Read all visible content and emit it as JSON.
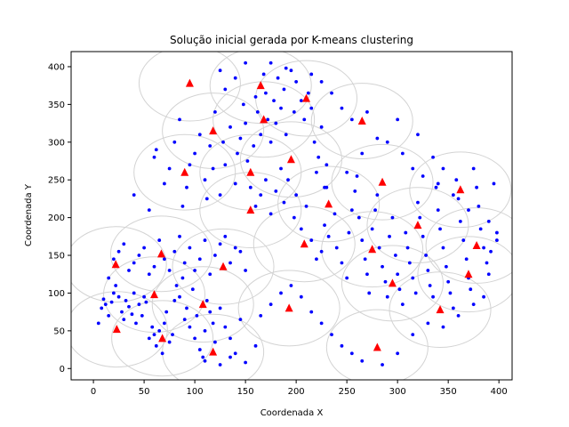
{
  "chart_data": {
    "type": "scatter",
    "title": "Solução inicial gerada por K-means clustering",
    "xlabel": "Coordenada X",
    "ylabel": "Coordenada Y",
    "xlim": [
      -22,
      413
    ],
    "ylim": [
      -15,
      420
    ],
    "xticks": [
      0,
      50,
      100,
      150,
      200,
      250,
      300,
      350,
      400
    ],
    "yticks": [
      0,
      50,
      100,
      150,
      200,
      250,
      300,
      350,
      400
    ],
    "grid": false,
    "legend": "none",
    "colors": {
      "points": "#0000ff",
      "centers": "#ff0000",
      "circles": "#d3d3d3"
    },
    "circle_radius": 50,
    "centers": [
      [
        95,
        378
      ],
      [
        165,
        375
      ],
      [
        210,
        358
      ],
      [
        265,
        328
      ],
      [
        168,
        330
      ],
      [
        118,
        315
      ],
      [
        90,
        260
      ],
      [
        155,
        260
      ],
      [
        195,
        277
      ],
      [
        285,
        247
      ],
      [
        362,
        237
      ],
      [
        155,
        210
      ],
      [
        232,
        218
      ],
      [
        320,
        190
      ],
      [
        208,
        165
      ],
      [
        275,
        158
      ],
      [
        378,
        163
      ],
      [
        67,
        152
      ],
      [
        22,
        138
      ],
      [
        128,
        135
      ],
      [
        370,
        125
      ],
      [
        295,
        113
      ],
      [
        60,
        98
      ],
      [
        108,
        85
      ],
      [
        193,
        80
      ],
      [
        342,
        78
      ],
      [
        23,
        52
      ],
      [
        68,
        40
      ],
      [
        118,
        22
      ],
      [
        280,
        28
      ]
    ],
    "points": [
      [
        5,
        60
      ],
      [
        8,
        80
      ],
      [
        10,
        92
      ],
      [
        12,
        85
      ],
      [
        15,
        70
      ],
      [
        18,
        88
      ],
      [
        20,
        100
      ],
      [
        22,
        110
      ],
      [
        25,
        95
      ],
      [
        28,
        75
      ],
      [
        30,
        65
      ],
      [
        32,
        90
      ],
      [
        35,
        82
      ],
      [
        38,
        72
      ],
      [
        40,
        100
      ],
      [
        42,
        60
      ],
      [
        45,
        85
      ],
      [
        48,
        70
      ],
      [
        50,
        95
      ],
      [
        52,
        88
      ],
      [
        55,
        40
      ],
      [
        58,
        55
      ],
      [
        60,
        45
      ],
      [
        62,
        30
      ],
      [
        65,
        50
      ],
      [
        68,
        20
      ],
      [
        70,
        60
      ],
      [
        72,
        75
      ],
      [
        75,
        35
      ],
      [
        78,
        45
      ],
      [
        80,
        90
      ],
      [
        82,
        110
      ],
      [
        85,
        95
      ],
      [
        88,
        120
      ],
      [
        90,
        65
      ],
      [
        92,
        80
      ],
      [
        95,
        55
      ],
      [
        98,
        105
      ],
      [
        100,
        40
      ],
      [
        102,
        70
      ],
      [
        105,
        25
      ],
      [
        108,
        15
      ],
      [
        110,
        50
      ],
      [
        112,
        90
      ],
      [
        115,
        75
      ],
      [
        118,
        60
      ],
      [
        120,
        35
      ],
      [
        125,
        80
      ],
      [
        130,
        55
      ],
      [
        135,
        40
      ],
      [
        140,
        20
      ],
      [
        145,
        65
      ],
      [
        15,
        120
      ],
      [
        20,
        145
      ],
      [
        25,
        155
      ],
      [
        30,
        165
      ],
      [
        35,
        130
      ],
      [
        40,
        140
      ],
      [
        45,
        150
      ],
      [
        50,
        160
      ],
      [
        55,
        125
      ],
      [
        60,
        135
      ],
      [
        65,
        170
      ],
      [
        70,
        145
      ],
      [
        75,
        130
      ],
      [
        80,
        155
      ],
      [
        85,
        175
      ],
      [
        90,
        140
      ],
      [
        95,
        160
      ],
      [
        100,
        130
      ],
      [
        105,
        145
      ],
      [
        110,
        170
      ],
      [
        115,
        125
      ],
      [
        120,
        150
      ],
      [
        125,
        165
      ],
      [
        130,
        175
      ],
      [
        135,
        140
      ],
      [
        140,
        160
      ],
      [
        145,
        155
      ],
      [
        150,
        130
      ],
      [
        40,
        230
      ],
      [
        55,
        210
      ],
      [
        60,
        280
      ],
      [
        62,
        290
      ],
      [
        70,
        245
      ],
      [
        75,
        265
      ],
      [
        80,
        300
      ],
      [
        85,
        330
      ],
      [
        88,
        215
      ],
      [
        92,
        240
      ],
      [
        95,
        270
      ],
      [
        100,
        285
      ],
      [
        105,
        310
      ],
      [
        110,
        250
      ],
      [
        112,
        225
      ],
      [
        115,
        295
      ],
      [
        118,
        265
      ],
      [
        120,
        340
      ],
      [
        125,
        230
      ],
      [
        128,
        300
      ],
      [
        130,
        270
      ],
      [
        135,
        320
      ],
      [
        140,
        245
      ],
      [
        142,
        285
      ],
      [
        145,
        305
      ],
      [
        148,
        350
      ],
      [
        150,
        325
      ],
      [
        152,
        275
      ],
      [
        155,
        240
      ],
      [
        158,
        295
      ],
      [
        160,
        360
      ],
      [
        162,
        340
      ],
      [
        165,
        310
      ],
      [
        168,
        390
      ],
      [
        170,
        365
      ],
      [
        172,
        330
      ],
      [
        175,
        300
      ],
      [
        178,
        355
      ],
      [
        180,
        325
      ],
      [
        182,
        385
      ],
      [
        185,
        345
      ],
      [
        188,
        370
      ],
      [
        190,
        310
      ],
      [
        195,
        395
      ],
      [
        198,
        340
      ],
      [
        200,
        380
      ],
      [
        205,
        355
      ],
      [
        208,
        330
      ],
      [
        212,
        365
      ],
      [
        215,
        345
      ],
      [
        218,
        300
      ],
      [
        220,
        260
      ],
      [
        222,
        280
      ],
      [
        225,
        320
      ],
      [
        228,
        240
      ],
      [
        230,
        270
      ],
      [
        160,
        215
      ],
      [
        165,
        230
      ],
      [
        170,
        250
      ],
      [
        175,
        205
      ],
      [
        180,
        235
      ],
      [
        185,
        265
      ],
      [
        188,
        220
      ],
      [
        192,
        250
      ],
      [
        198,
        200
      ],
      [
        200,
        230
      ],
      [
        205,
        185
      ],
      [
        210,
        215
      ],
      [
        215,
        170
      ],
      [
        220,
        145
      ],
      [
        225,
        155
      ],
      [
        228,
        190
      ],
      [
        232,
        175
      ],
      [
        238,
        205
      ],
      [
        240,
        160
      ],
      [
        245,
        140
      ],
      [
        250,
        120
      ],
      [
        252,
        180
      ],
      [
        255,
        210
      ],
      [
        258,
        235
      ],
      [
        260,
        255
      ],
      [
        262,
        200
      ],
      [
        265,
        170
      ],
      [
        268,
        145
      ],
      [
        270,
        125
      ],
      [
        272,
        100
      ],
      [
        275,
        185
      ],
      [
        278,
        210
      ],
      [
        280,
        230
      ],
      [
        282,
        160
      ],
      [
        285,
        135
      ],
      [
        288,
        115
      ],
      [
        290,
        95
      ],
      [
        292,
        175
      ],
      [
        295,
        200
      ],
      [
        298,
        150
      ],
      [
        300,
        125
      ],
      [
        302,
        105
      ],
      [
        305,
        85
      ],
      [
        308,
        180
      ],
      [
        310,
        160
      ],
      [
        312,
        140
      ],
      [
        315,
        120
      ],
      [
        318,
        100
      ],
      [
        320,
        220
      ],
      [
        322,
        200
      ],
      [
        325,
        175
      ],
      [
        328,
        150
      ],
      [
        330,
        130
      ],
      [
        332,
        110
      ],
      [
        335,
        95
      ],
      [
        338,
        240
      ],
      [
        340,
        210
      ],
      [
        342,
        185
      ],
      [
        345,
        160
      ],
      [
        348,
        135
      ],
      [
        350,
        115
      ],
      [
        352,
        100
      ],
      [
        355,
        80
      ],
      [
        358,
        250
      ],
      [
        360,
        225
      ],
      [
        362,
        195
      ],
      [
        365,
        170
      ],
      [
        368,
        145
      ],
      [
        370,
        120
      ],
      [
        372,
        105
      ],
      [
        375,
        265
      ],
      [
        378,
        240
      ],
      [
        380,
        215
      ],
      [
        382,
        185
      ],
      [
        385,
        160
      ],
      [
        388,
        140
      ],
      [
        390,
        125
      ],
      [
        392,
        155
      ],
      [
        395,
        245
      ],
      [
        398,
        170
      ],
      [
        230,
        240
      ],
      [
        250,
        260
      ],
      [
        265,
        285
      ],
      [
        280,
        305
      ],
      [
        300,
        330
      ],
      [
        320,
        310
      ],
      [
        335,
        280
      ],
      [
        345,
        265
      ],
      [
        110,
        10
      ],
      [
        125,
        5
      ],
      [
        135,
        15
      ],
      [
        150,
        8
      ],
      [
        160,
        30
      ],
      [
        165,
        70
      ],
      [
        175,
        85
      ],
      [
        185,
        100
      ],
      [
        195,
        110
      ],
      [
        205,
        95
      ],
      [
        215,
        75
      ],
      [
        225,
        60
      ],
      [
        235,
        45
      ],
      [
        245,
        30
      ],
      [
        255,
        20
      ],
      [
        265,
        10
      ],
      [
        285,
        5
      ],
      [
        300,
        20
      ],
      [
        315,
        45
      ],
      [
        330,
        60
      ],
      [
        345,
        55
      ],
      [
        360,
        70
      ],
      [
        375,
        85
      ],
      [
        385,
        95
      ],
      [
        125,
        395
      ],
      [
        130,
        370
      ],
      [
        140,
        385
      ],
      [
        150,
        405
      ],
      [
        175,
        405
      ],
      [
        190,
        398
      ],
      [
        215,
        390
      ],
      [
        225,
        380
      ],
      [
        235,
        365
      ],
      [
        245,
        345
      ],
      [
        255,
        330
      ],
      [
        270,
        340
      ],
      [
        290,
        300
      ],
      [
        305,
        285
      ],
      [
        315,
        265
      ],
      [
        325,
        255
      ],
      [
        340,
        245
      ],
      [
        355,
        230
      ],
      [
        370,
        210
      ],
      [
        390,
        195
      ],
      [
        398,
        180
      ]
    ]
  }
}
